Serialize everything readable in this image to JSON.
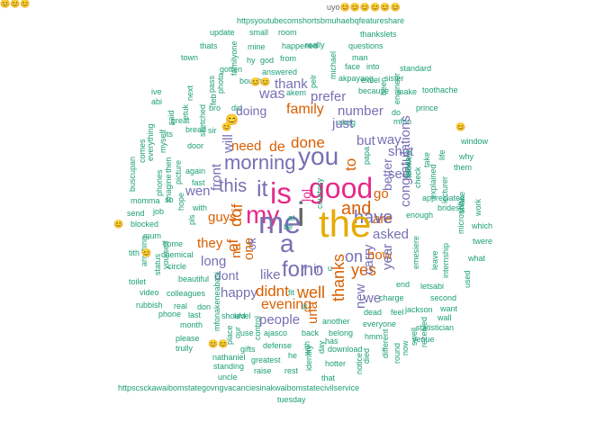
{
  "palette": {
    "teal": "#1b9e77",
    "orange": "#d95f02",
    "purple": "#7570b3",
    "magenta": "#e7298a",
    "olive": "#66a61e",
    "gold": "#e6ab02",
    "gray": "#666666"
  },
  "words": [
    {
      "text": "uyo😊😊😊😊😊😊",
      "color": "gray"
    },
    {
      "text": "httpsyoutubecomshortsbmuhaebqfeatureshare",
      "color": "teal"
    },
    {
      "text": "update",
      "color": "teal"
    },
    {
      "text": "small",
      "color": "teal"
    },
    {
      "text": "room",
      "color": "teal"
    },
    {
      "text": "thankslets",
      "color": "teal"
    },
    {
      "text": "really",
      "color": "teal"
    },
    {
      "text": "thats",
      "color": "teal"
    },
    {
      "text": "mine",
      "color": "teal"
    },
    {
      "text": "happened",
      "color": "teal"
    },
    {
      "text": "questions",
      "color": "teal"
    },
    {
      "text": "town",
      "color": "teal"
    },
    {
      "text": "hy",
      "color": "teal"
    },
    {
      "text": "god",
      "color": "teal"
    },
    {
      "text": "from",
      "color": "teal"
    },
    {
      "text": "man",
      "color": "teal"
    },
    {
      "text": "gotten",
      "color": "teal"
    },
    {
      "text": "answered",
      "color": "teal"
    },
    {
      "text": "face",
      "color": "teal"
    },
    {
      "text": "into",
      "color": "teal"
    },
    {
      "text": "standard",
      "color": "teal"
    },
    {
      "text": "bought",
      "color": "teal"
    },
    {
      "text": "akpayang",
      "color": "teal"
    },
    {
      "text": "excel",
      "color": "teal"
    },
    {
      "text": "sister",
      "color": "teal"
    },
    {
      "text": "was",
      "color": "purple"
    },
    {
      "text": "thank",
      "color": "purple"
    },
    {
      "text": "akem",
      "color": "teal"
    },
    {
      "text": "because",
      "color": "teal"
    },
    {
      "text": "make",
      "color": "teal"
    },
    {
      "text": "toothache",
      "color": "teal"
    },
    {
      "text": "prefer",
      "color": "purple"
    },
    {
      "text": "bro",
      "color": "teal"
    },
    {
      "text": "did",
      "color": "teal"
    },
    {
      "text": "family",
      "color": "orange"
    },
    {
      "text": "number",
      "color": "purple"
    },
    {
      "text": "doing",
      "color": "purple"
    },
    {
      "text": "abeg",
      "color": "teal"
    },
    {
      "text": "do",
      "color": "teal"
    },
    {
      "text": "mfon",
      "color": "teal"
    },
    {
      "text": "prince",
      "color": "teal"
    },
    {
      "text": "great",
      "color": "teal"
    },
    {
      "text": "just",
      "color": "purple"
    },
    {
      "text": "window",
      "color": "teal"
    },
    {
      "text": "sir",
      "color": "teal"
    },
    {
      "text": "need",
      "color": "orange"
    },
    {
      "text": "de",
      "color": "orange"
    },
    {
      "text": "done",
      "color": "orange"
    },
    {
      "text": "but",
      "color": "purple"
    },
    {
      "text": "way",
      "color": "purple"
    },
    {
      "text": "its",
      "color": "teal"
    },
    {
      "text": "bread",
      "color": "teal"
    },
    {
      "text": "door",
      "color": "teal"
    },
    {
      "text": "morning",
      "color": "purple"
    },
    {
      "text": "you",
      "color": "purple"
    },
    {
      "text": "shot",
      "color": "purple"
    },
    {
      "text": "them",
      "color": "teal"
    },
    {
      "text": "why",
      "color": "teal"
    },
    {
      "text": "again",
      "color": "teal"
    },
    {
      "text": "fast",
      "color": "teal"
    },
    {
      "text": "good",
      "color": "magenta"
    },
    {
      "text": "see",
      "color": "purple"
    },
    {
      "text": "this",
      "color": "purple"
    },
    {
      "text": "it",
      "color": "purple"
    },
    {
      "text": "is",
      "color": "magenta"
    },
    {
      "text": "wen",
      "color": "purple"
    },
    {
      "text": "with",
      "color": "teal"
    },
    {
      "text": "my",
      "color": "magenta"
    },
    {
      "text": "appreciated",
      "color": "teal"
    },
    {
      "text": "enough",
      "color": "teal"
    },
    {
      "text": "brides",
      "color": "teal"
    },
    {
      "text": "are",
      "color": "orange"
    },
    {
      "text": "go",
      "color": "orange"
    },
    {
      "text": "job",
      "color": "teal"
    },
    {
      "text": "send",
      "color": "teal"
    },
    {
      "text": "guys",
      "color": "orange"
    },
    {
      "text": "me",
      "color": "purple"
    },
    {
      "text": "and",
      "color": "orange"
    },
    {
      "text": "have",
      "color": "purple"
    },
    {
      "text": "asked",
      "color": "purple"
    },
    {
      "text": "blocked",
      "color": "teal"
    },
    {
      "text": "mum",
      "color": "teal"
    },
    {
      "text": "come",
      "color": "teal"
    },
    {
      "text": "they",
      "color": "orange"
    },
    {
      "text": "a",
      "color": "purple"
    },
    {
      "text": "the",
      "color": "gold"
    },
    {
      "text": "i",
      "color": "gray"
    },
    {
      "text": "on",
      "color": "purple"
    },
    {
      "text": "how",
      "color": "orange"
    },
    {
      "text": "twere",
      "color": "teal"
    },
    {
      "text": "which",
      "color": "teal"
    },
    {
      "text": "chemical",
      "color": "teal"
    },
    {
      "text": "long",
      "color": "purple"
    },
    {
      "text": "for",
      "color": "purple"
    },
    {
      "text": "no",
      "color": "purple"
    },
    {
      "text": "what",
      "color": "teal"
    },
    {
      "text": "circle",
      "color": "teal"
    },
    {
      "text": "beautiful",
      "color": "teal"
    },
    {
      "text": "dont",
      "color": "purple"
    },
    {
      "text": "like",
      "color": "purple"
    },
    {
      "text": "yes",
      "color": "orange"
    },
    {
      "text": "end",
      "color": "teal"
    },
    {
      "text": "toilet",
      "color": "teal"
    },
    {
      "text": "well",
      "color": "orange"
    },
    {
      "text": "letsabi",
      "color": "teal"
    },
    {
      "text": "happy",
      "color": "purple"
    },
    {
      "text": "didnt",
      "color": "orange"
    },
    {
      "text": "video",
      "color": "teal"
    },
    {
      "text": "colleagues",
      "color": "teal"
    },
    {
      "text": "fit",
      "color": "teal"
    },
    {
      "text": "we",
      "color": "purple"
    },
    {
      "text": "charge",
      "color": "teal"
    },
    {
      "text": "second",
      "color": "teal"
    },
    {
      "text": "rubbish",
      "color": "teal"
    },
    {
      "text": "real",
      "color": "teal"
    },
    {
      "text": "don",
      "color": "teal"
    },
    {
      "text": "evening",
      "color": "orange"
    },
    {
      "text": "ill",
      "color": "teal"
    },
    {
      "text": "jackson",
      "color": "teal"
    },
    {
      "text": "want",
      "color": "teal"
    },
    {
      "text": "dead",
      "color": "teal"
    },
    {
      "text": "feel",
      "color": "teal"
    },
    {
      "text": "phone",
      "color": "teal"
    },
    {
      "text": "last",
      "color": "teal"
    },
    {
      "text": "people",
      "color": "purple"
    },
    {
      "text": "wall",
      "color": "teal"
    },
    {
      "text": "month",
      "color": "teal"
    },
    {
      "text": "another",
      "color": "teal"
    },
    {
      "text": "everyone",
      "color": "teal"
    },
    {
      "text": "statistician",
      "color": "teal"
    },
    {
      "text": "please",
      "color": "teal"
    },
    {
      "text": "ajasco",
      "color": "teal"
    },
    {
      "text": "back",
      "color": "teal"
    },
    {
      "text": "belong",
      "color": "teal"
    },
    {
      "text": "hmm",
      "color": "teal"
    },
    {
      "text": "venue",
      "color": "teal"
    },
    {
      "text": "trully",
      "color": "teal"
    },
    {
      "text": "defense",
      "color": "teal"
    },
    {
      "text": "has",
      "color": "teal"
    },
    {
      "text": "download",
      "color": "teal"
    },
    {
      "text": "nathaniel",
      "color": "teal"
    },
    {
      "text": "gifts",
      "color": "teal"
    },
    {
      "text": "he",
      "color": "teal"
    },
    {
      "text": "greatest",
      "color": "teal"
    },
    {
      "text": "standing",
      "color": "teal"
    },
    {
      "text": "hotter",
      "color": "teal"
    },
    {
      "text": "raise",
      "color": "teal"
    },
    {
      "text": "rest",
      "color": "teal"
    },
    {
      "text": "uncle",
      "color": "teal"
    },
    {
      "text": "that",
      "color": "teal"
    },
    {
      "text": "httpscsckawaibomstategovngvacanciesinakwaibomstatecivilservice",
      "color": "teal"
    },
    {
      "text": "tuesday",
      "color": "teal"
    },
    {
      "text": "at",
      "color": "teal"
    },
    {
      "text": "be",
      "color": "teal"
    },
    {
      "text": "in",
      "color": "purple"
    },
    {
      "text": "u",
      "color": "teal"
    },
    {
      "text": "so",
      "color": "teal"
    },
    {
      "text": "momma",
      "color": "teal"
    },
    {
      "text": "lol",
      "color": "magenta"
    },
    {
      "text": "to",
      "color": "orange"
    },
    {
      "text": "of",
      "color": "orange"
    },
    {
      "text": "if",
      "color": "orange"
    },
    {
      "text": "do",
      "color": "orange"
    },
    {
      "text": "front",
      "color": "purple"
    },
    {
      "text": "will",
      "color": "purple"
    },
    {
      "text": "na",
      "color": "orange"
    },
    {
      "text": "one",
      "color": "orange"
    },
    {
      "text": "ok",
      "color": "purple"
    },
    {
      "text": "thanks",
      "color": "orange"
    },
    {
      "text": "una",
      "color": "orange"
    },
    {
      "text": "new",
      "color": "purple"
    },
    {
      "text": "carry",
      "color": "purple"
    },
    {
      "text": "year",
      "color": "purple"
    },
    {
      "text": "better",
      "color": "purple"
    },
    {
      "text": "congratulations",
      "color": "purple"
    },
    {
      "text": "check",
      "color": "teal"
    },
    {
      "text": "take",
      "color": "teal"
    },
    {
      "text": "explained",
      "color": "teal"
    },
    {
      "text": "lecturer",
      "color": "teal"
    },
    {
      "text": "microsoft",
      "color": "teal"
    },
    {
      "text": "work",
      "color": "teal"
    },
    {
      "text": "used",
      "color": "teal"
    },
    {
      "text": "shake",
      "color": "teal"
    },
    {
      "text": "internship",
      "color": "teal"
    },
    {
      "text": "leave",
      "color": "teal"
    },
    {
      "text": "emesiere",
      "color": "teal"
    },
    {
      "text": "allowed",
      "color": "teal"
    },
    {
      "text": "life",
      "color": "teal"
    },
    {
      "text": "funds",
      "color": "teal"
    },
    {
      "text": "papa",
      "color": "teal"
    },
    {
      "text": "engineer",
      "color": "teal"
    },
    {
      "text": "been",
      "color": "teal"
    },
    {
      "text": "michael",
      "color": "teal"
    },
    {
      "text": "pelr",
      "color": "teal"
    },
    {
      "text": "familyone",
      "color": "teal"
    },
    {
      "text": "feb",
      "color": "teal"
    },
    {
      "text": "pass",
      "color": "teal"
    },
    {
      "text": "next",
      "color": "teal"
    },
    {
      "text": "photo",
      "color": "teal"
    },
    {
      "text": "said",
      "color": "teal"
    },
    {
      "text": "etuk",
      "color": "teal"
    },
    {
      "text": "sketched",
      "color": "teal"
    },
    {
      "text": "myself",
      "color": "teal"
    },
    {
      "text": "everything",
      "color": "teal"
    },
    {
      "text": "phones",
      "color": "teal"
    },
    {
      "text": "then",
      "color": "teal"
    },
    {
      "text": "picture",
      "color": "teal"
    },
    {
      "text": "imagine",
      "color": "teal"
    },
    {
      "text": "hope",
      "color": "teal"
    },
    {
      "text": "pls",
      "color": "teal"
    },
    {
      "text": "buscupan",
      "color": "teal"
    },
    {
      "text": "comes",
      "color": "teal"
    },
    {
      "text": "anything",
      "color": "teal"
    },
    {
      "text": "status",
      "color": "teal"
    },
    {
      "text": "yourself",
      "color": "teal"
    },
    {
      "text": "place",
      "color": "teal"
    },
    {
      "text": "mfonakeneabasi",
      "color": "teal"
    },
    {
      "text": "our",
      "color": "teal"
    },
    {
      "text": "courtesy",
      "color": "teal"
    },
    {
      "text": "control",
      "color": "teal"
    },
    {
      "text": "identity",
      "color": "teal"
    },
    {
      "text": "with",
      "color": "teal"
    },
    {
      "text": "day",
      "color": "teal"
    },
    {
      "text": "notice",
      "color": "teal"
    },
    {
      "text": "died",
      "color": "teal"
    },
    {
      "text": "different",
      "color": "teal"
    },
    {
      "text": "round",
      "color": "teal"
    },
    {
      "text": "now",
      "color": "teal"
    },
    {
      "text": "swell",
      "color": "teal"
    },
    {
      "text": "received",
      "color": "teal"
    },
    {
      "text": "should",
      "color": "teal"
    },
    {
      "text": "level",
      "color": "teal"
    },
    {
      "text": "use",
      "color": "teal"
    },
    {
      "text": "ive",
      "color": "teal"
    },
    {
      "text": "abi",
      "color": "teal"
    },
    {
      "text": "tith",
      "color": "teal"
    },
    {
      "text": "😊",
      "color": "gray"
    },
    {
      "text": "😊",
      "color": "gray"
    },
    {
      "text": "😊😊",
      "color": "gray"
    },
    {
      "text": "😊😊",
      "color": "gray"
    },
    {
      "text": "😊",
      "color": "gray"
    },
    {
      "text": "😊",
      "color": "gray"
    },
    {
      "text": "😊",
      "color": "gray"
    },
    {
      "text": "😊😊😊",
      "color": "gray"
    },
    {
      "text": "😊",
      "color": "gray"
    },
    {
      "text": "😊",
      "color": "gray"
    }
  ]
}
